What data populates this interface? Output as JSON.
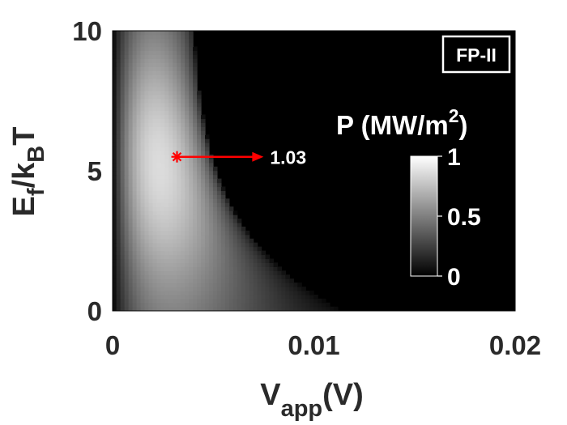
{
  "chart_data": {
    "type": "heatmap",
    "panel_label": "FP-II",
    "xlim": [
      0,
      0.02
    ],
    "ylim": [
      0,
      10
    ],
    "x_ticks": [
      "0",
      "0.01",
      "0.02"
    ],
    "y_ticks": [
      "0",
      "5",
      "10"
    ],
    "xlabel": {
      "main": "V",
      "sub": "app",
      "tail": "(V)"
    },
    "ylabel": {
      "p1": "E",
      "s1": "f",
      "p2": "/k",
      "s2": "B",
      "p3": "T"
    },
    "colorbar": {
      "title_main": "P (MW/m",
      "title_sup": "2",
      "title_end": ")",
      "range": [
        0,
        1
      ],
      "ticks": [
        "0",
        "0.5",
        "1"
      ],
      "colormap": "gray"
    },
    "marker": {
      "x": 0.0032,
      "y": 5.5,
      "label": "1.03",
      "arrow_to_x": 0.0075,
      "color": "#ff0000"
    },
    "field_shape": {
      "peak_x": 0.0032,
      "peak_y": 5.5,
      "peak_value": 1.03,
      "boundary_x_at_y0": 0.0115,
      "boundary_x_at_y10": 0.0038
    }
  }
}
